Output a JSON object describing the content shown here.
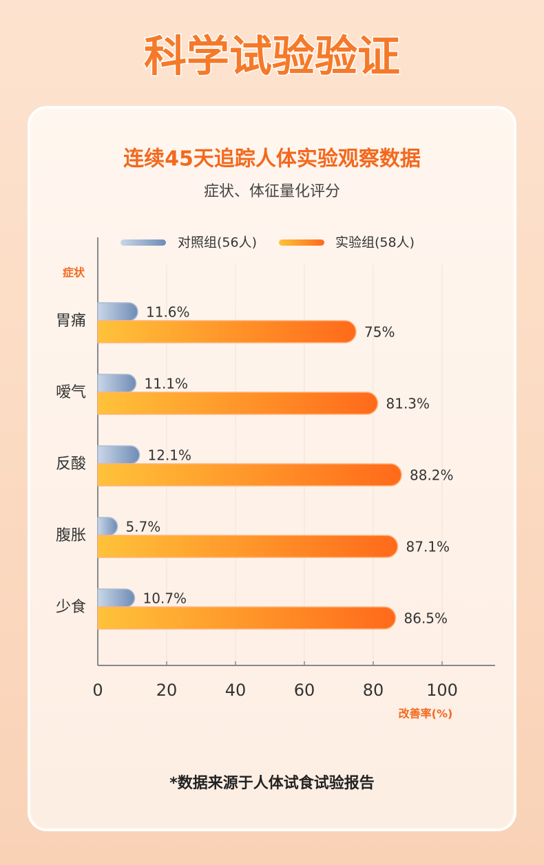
{
  "header": {
    "title": "科学试验验证"
  },
  "chart_data": {
    "type": "bar",
    "orientation": "horizontal",
    "title": "连续45天追踪人体实验观察数据",
    "subtitle": "症状、体征量化评分",
    "y_label": "症状",
    "x_label": "改善率(%)",
    "categories": [
      "胃痛",
      "嗳气",
      "反酸",
      "腹胀",
      "少食"
    ],
    "series": [
      {
        "name": "对照组(56人)",
        "color": "#6f8cb5",
        "values": [
          11.6,
          11.1,
          12.1,
          5.7,
          10.7
        ],
        "value_labels": [
          "11.6%",
          "11.1%",
          "12.1%",
          "5.7%",
          "10.7%"
        ]
      },
      {
        "name": "实验组(58人)",
        "color": "#ff6a1a",
        "values": [
          75,
          81.3,
          88.2,
          87.1,
          86.5
        ],
        "value_labels": [
          "75%",
          "81.3%",
          "88.2%",
          "87.1%",
          "86.5%"
        ]
      }
    ],
    "xlim": [
      0,
      115
    ],
    "xticks": [
      0,
      20,
      40,
      60,
      80,
      100
    ],
    "grid": true,
    "legend": "top"
  },
  "footer": {
    "note": "*数据来源于人体试食试验报告"
  }
}
